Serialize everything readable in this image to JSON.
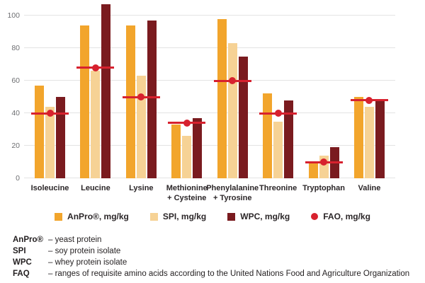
{
  "chart_data": {
    "type": "bar",
    "title": "",
    "xlabel": "",
    "ylabel": "",
    "ylim": [
      0,
      108
    ],
    "yticks": [
      0,
      20,
      40,
      60,
      80,
      100
    ],
    "grid": true,
    "legend_position": "bottom",
    "categories": [
      {
        "label": "Isoleucine",
        "lines": [
          "Isoleucine"
        ]
      },
      {
        "label": "Leucine",
        "lines": [
          "Leucine"
        ]
      },
      {
        "label": "Lysine",
        "lines": [
          "Lysine"
        ]
      },
      {
        "label": "Methionine + Cysteine",
        "lines": [
          "Methionine",
          "+ Cysteine"
        ]
      },
      {
        "label": "Phenylalanine + Tyrosine",
        "lines": [
          "Phenylalanine",
          "+ Tyrosine"
        ]
      },
      {
        "label": "Threonine",
        "lines": [
          "Threonine"
        ]
      },
      {
        "label": "Tryptophan",
        "lines": [
          "Tryptophan"
        ]
      },
      {
        "label": "Valine",
        "lines": [
          "Valine"
        ]
      }
    ],
    "series": [
      {
        "name": "AnPro®, mg/kg",
        "color_key": "anpro",
        "values": [
          57,
          94,
          94,
          33,
          98,
          52,
          9,
          50
        ]
      },
      {
        "name": "SPI, mg/kg",
        "color_key": "spi",
        "values": [
          44,
          66,
          63,
          26,
          83,
          35,
          14,
          44
        ]
      },
      {
        "name": "WPC, mg/kg",
        "color_key": "wpc",
        "values": [
          50,
          107,
          97,
          37,
          75,
          48,
          19,
          48
        ]
      }
    ],
    "reference_series": {
      "name": "FAO, mg/kg",
      "color_key": "fao",
      "marker": "line-with-dot",
      "values": [
        40,
        68,
        50,
        34,
        60,
        40,
        10,
        48
      ]
    }
  },
  "colors": {
    "anpro": "#F2A52C",
    "spi": "#F6D295",
    "wpc": "#7A1B1F",
    "fao": "#D7212E",
    "grid": "#E3E3E3",
    "axis_text": "#6D6E71",
    "label_text": "#2B2628"
  },
  "footnotes": [
    {
      "term": "AnPro®",
      "definition": "– yeast protein"
    },
    {
      "term": "SPI",
      "definition": "– soy protein isolate"
    },
    {
      "term": "WPC",
      "definition": "– whey protein isolate"
    },
    {
      "term": "FAQ",
      "definition": "– ranges of requisite amino acids according to the United Nations Food and Agriculture Organization"
    }
  ]
}
